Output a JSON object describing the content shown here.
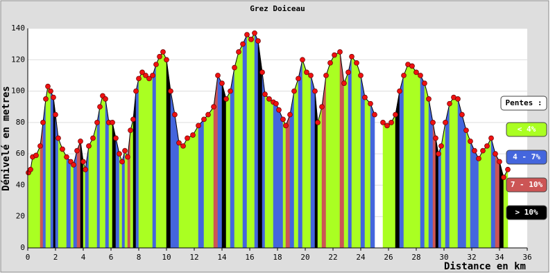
{
  "chart_data": {
    "type": "elevation",
    "title": "Grez Doiceau",
    "y_label": "Dénivelé en metres",
    "x_label": "Distance en km",
    "legend_title": "Pentes :",
    "legend": [
      {
        "label": "< 4%",
        "color": "#aaff22"
      },
      {
        "label": "4 - 7%",
        "color": "#4466dd"
      },
      {
        "label": "7 - 10%",
        "color": "#cc5555"
      },
      {
        "label": "> 10%",
        "color": "#000000"
      }
    ],
    "marker_color": "#ee1111",
    "grid": true,
    "xlim": [
      0,
      36
    ],
    "xticks": [
      0,
      2,
      4,
      6,
      8,
      10,
      12,
      14,
      16,
      18,
      20,
      22,
      24,
      26,
      28,
      30,
      32,
      34,
      36
    ],
    "ylim": [
      0,
      140
    ],
    "yticks": [
      0,
      20,
      40,
      60,
      80,
      100,
      120,
      140
    ],
    "x": [
      0.05,
      0.2,
      0.35,
      0.6,
      0.9,
      1.1,
      1.3,
      1.45,
      1.65,
      1.85,
      2.0,
      2.2,
      2.5,
      2.8,
      3.1,
      3.3,
      3.55,
      3.8,
      4.0,
      4.15,
      4.4,
      4.7,
      5.0,
      5.2,
      5.4,
      5.6,
      5.85,
      6.1,
      6.35,
      6.6,
      6.8,
      7.0,
      7.2,
      7.4,
      7.6,
      7.8,
      8.0,
      8.25,
      8.5,
      8.75,
      9.0,
      9.25,
      9.5,
      9.75,
      10.0,
      10.3,
      10.6,
      10.9,
      11.2,
      11.5,
      11.9,
      12.3,
      12.7,
      13.0,
      13.4,
      13.7,
      14.0,
      14.3,
      14.6,
      14.9,
      15.2,
      15.5,
      15.8,
      16.1,
      16.35,
      16.6,
      16.9,
      17.1,
      17.4,
      17.7,
      17.9,
      18.1,
      18.4,
      18.6,
      18.9,
      19.2,
      19.5,
      19.8,
      20.1,
      20.4,
      20.7,
      20.9,
      21.2,
      21.5,
      21.8,
      22.1,
      22.5,
      22.8,
      23.1,
      23.35,
      23.7,
      24.0,
      24.3,
      24.7,
      25.0,
      25.3,
      25.6,
      25.9,
      26.2,
      26.5,
      26.8,
      27.1,
      27.4,
      27.7,
      28.0,
      28.3,
      28.6,
      28.9,
      29.2,
      29.4,
      29.6,
      29.8,
      30.1,
      30.4,
      30.7,
      31.0,
      31.3,
      31.6,
      31.9,
      32.2,
      32.5,
      32.8,
      33.1,
      33.4,
      33.7,
      34.0,
      34.3,
      34.6
    ],
    "values": [
      48,
      50,
      58,
      59,
      65,
      80,
      95,
      103,
      100,
      96,
      85,
      70,
      63,
      58,
      55,
      53,
      62,
      68,
      55,
      50,
      65,
      70,
      80,
      90,
      97,
      95,
      80,
      80,
      70,
      60,
      55,
      62,
      58,
      75,
      82,
      100,
      108,
      112,
      110,
      108,
      110,
      117,
      122,
      125,
      120,
      100,
      85,
      67,
      65,
      70,
      72,
      78,
      82,
      85,
      90,
      110,
      105,
      95,
      100,
      115,
      125,
      130,
      136,
      133,
      137,
      132,
      112,
      98,
      95,
      93,
      92,
      88,
      82,
      78,
      85,
      100,
      108,
      120,
      112,
      110,
      100,
      80,
      90,
      110,
      118,
      123,
      125,
      105,
      112,
      122,
      118,
      110,
      96,
      92,
      85,
      null,
      80,
      78,
      80,
      85,
      100,
      110,
      117,
      116,
      112,
      110,
      105,
      95,
      80,
      70,
      60,
      65,
      80,
      92,
      96,
      95,
      85,
      75,
      68,
      62,
      57,
      62,
      65,
      70,
      60,
      55,
      45,
      50
    ],
    "slope_classes": [
      0,
      0,
      0,
      0,
      0,
      2,
      1,
      0,
      0,
      1,
      3,
      1,
      0,
      0,
      1,
      0,
      1,
      2,
      3,
      0,
      1,
      0,
      0,
      1,
      0,
      0,
      1,
      0,
      3,
      1,
      0,
      1,
      0,
      2,
      0,
      3,
      1,
      0,
      0,
      0,
      0,
      1,
      0,
      0,
      0,
      3,
      1,
      1,
      0,
      0,
      0,
      0,
      1,
      0,
      0,
      2,
      1,
      3,
      0,
      1,
      0,
      0,
      1,
      0,
      0,
      1,
      3,
      1,
      0,
      0,
      1,
      1,
      1,
      0,
      2,
      1,
      0,
      1,
      0,
      0,
      1,
      3,
      0,
      2,
      0,
      0,
      0,
      2,
      0,
      1,
      0,
      0,
      1,
      0,
      1,
      0,
      0,
      0,
      0,
      0,
      3,
      1,
      0,
      0,
      0,
      0,
      1,
      0,
      1,
      2,
      3,
      1,
      0,
      1,
      0,
      0,
      1,
      1,
      0,
      1,
      1,
      0,
      0,
      0,
      1,
      2,
      3,
      0
    ]
  }
}
